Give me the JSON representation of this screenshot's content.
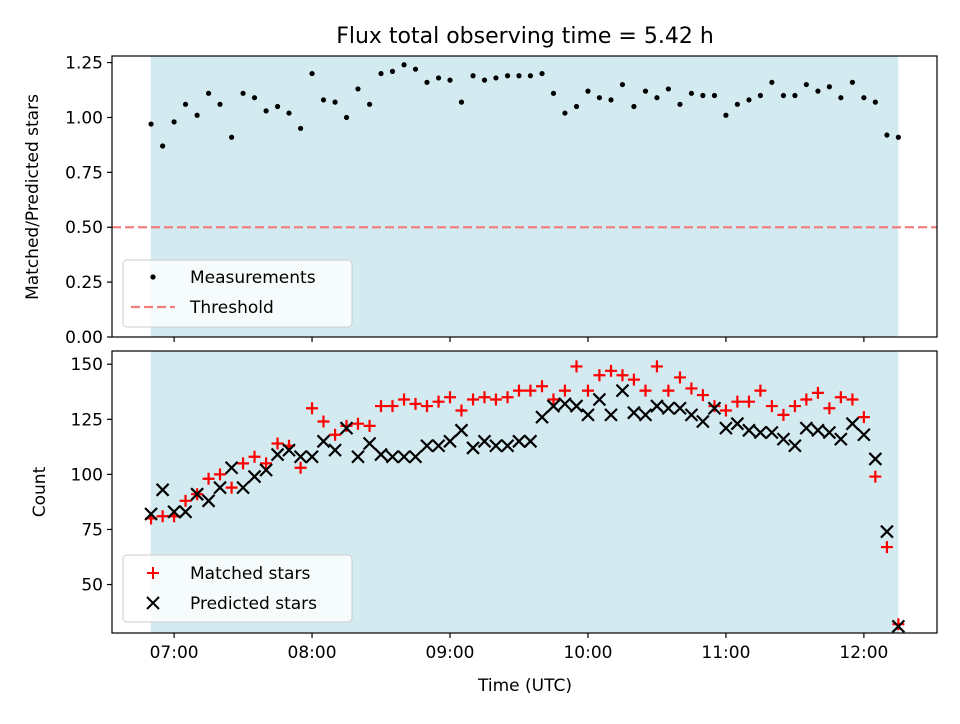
{
  "colors": {
    "observing_band": "#d3eaf0",
    "threshold_line": "#f08080",
    "matched": "#ff0000",
    "predicted": "#000000",
    "measurement": "#000000"
  },
  "x_ticks": [
    {
      "t": 7.0,
      "label": "07:00"
    },
    {
      "t": 8.0,
      "label": "08:00"
    },
    {
      "t": 9.0,
      "label": "09:00"
    },
    {
      "t": 10.0,
      "label": "10:00"
    },
    {
      "t": 11.0,
      "label": "11:00"
    },
    {
      "t": 12.0,
      "label": "12:00"
    }
  ],
  "chart_data": [
    {
      "type": "scatter",
      "title": "Flux total observing time = 5.42 h",
      "xlabel": "",
      "ylabel": "Matched/Predicted stars",
      "xlim": [
        6.55,
        12.53
      ],
      "ylim": [
        0.0,
        1.28
      ],
      "yticks": [
        {
          "v": 0.0,
          "label": "0.00"
        },
        {
          "v": 0.25,
          "label": "0.25"
        },
        {
          "v": 0.5,
          "label": "0.50"
        },
        {
          "v": 0.75,
          "label": "0.75"
        },
        {
          "v": 1.0,
          "label": "1.00"
        },
        {
          "v": 1.25,
          "label": "1.25"
        }
      ],
      "observing_window": [
        6.83,
        12.25
      ],
      "threshold": 0.5,
      "legend": {
        "position": "lower-left",
        "entries": [
          {
            "name": "Measurements",
            "marker": "dot"
          },
          {
            "name": "Threshold",
            "marker": "dashed-line"
          }
        ]
      },
      "series": [
        {
          "name": "Measurements",
          "x": [
            6.833,
            6.917,
            7.0,
            7.083,
            7.167,
            7.25,
            7.333,
            7.417,
            7.5,
            7.583,
            7.667,
            7.75,
            7.833,
            7.917,
            8.0,
            8.083,
            8.167,
            8.25,
            8.333,
            8.417,
            8.5,
            8.583,
            8.667,
            8.75,
            8.833,
            8.917,
            9.0,
            9.083,
            9.167,
            9.25,
            9.333,
            9.417,
            9.5,
            9.583,
            9.667,
            9.75,
            9.833,
            9.917,
            10.0,
            10.083,
            10.167,
            10.25,
            10.333,
            10.417,
            10.5,
            10.583,
            10.667,
            10.75,
            10.833,
            10.917,
            11.0,
            11.083,
            11.167,
            11.25,
            11.333,
            11.417,
            11.5,
            11.583,
            11.667,
            11.75,
            11.833,
            11.917,
            12.0,
            12.083,
            12.167,
            12.25
          ],
          "values": [
            0.97,
            0.87,
            0.98,
            1.06,
            1.01,
            1.11,
            1.06,
            0.91,
            1.11,
            1.09,
            1.03,
            1.05,
            1.02,
            0.95,
            1.2,
            1.08,
            1.07,
            1.0,
            1.13,
            1.06,
            1.2,
            1.21,
            1.24,
            1.22,
            1.16,
            1.18,
            1.17,
            1.07,
            1.19,
            1.17,
            1.18,
            1.19,
            1.19,
            1.19,
            1.2,
            1.11,
            1.02,
            1.05,
            1.12,
            1.09,
            1.08,
            1.15,
            1.05,
            1.12,
            1.09,
            1.13,
            1.06,
            1.11,
            1.1,
            1.1,
            1.01,
            1.06,
            1.08,
            1.1,
            1.16,
            1.1,
            1.1,
            1.15,
            1.12,
            1.14,
            1.09,
            1.16,
            1.09,
            1.07,
            0.92,
            0.91
          ]
        }
      ]
    },
    {
      "type": "scatter",
      "title": "",
      "xlabel": "Time (UTC)",
      "ylabel": "Count",
      "xlim": [
        6.55,
        12.53
      ],
      "ylim": [
        28,
        156
      ],
      "yticks": [
        {
          "v": 50,
          "label": "50"
        },
        {
          "v": 75,
          "label": "75"
        },
        {
          "v": 100,
          "label": "100"
        },
        {
          "v": 125,
          "label": "125"
        },
        {
          "v": 150,
          "label": "150"
        }
      ],
      "observing_window": [
        6.83,
        12.25
      ],
      "legend": {
        "position": "lower-left",
        "entries": [
          {
            "name": "Matched stars",
            "marker": "plus"
          },
          {
            "name": "Predicted stars",
            "marker": "x"
          }
        ]
      },
      "series": [
        {
          "name": "Matched stars",
          "x": [
            6.833,
            6.917,
            7.0,
            7.083,
            7.167,
            7.25,
            7.333,
            7.417,
            7.5,
            7.583,
            7.667,
            7.75,
            7.833,
            7.917,
            8.0,
            8.083,
            8.167,
            8.25,
            8.333,
            8.417,
            8.5,
            8.583,
            8.667,
            8.75,
            8.833,
            8.917,
            9.0,
            9.083,
            9.167,
            9.25,
            9.333,
            9.417,
            9.5,
            9.583,
            9.667,
            9.75,
            9.833,
            9.917,
            10.0,
            10.083,
            10.167,
            10.25,
            10.333,
            10.417,
            10.5,
            10.583,
            10.667,
            10.75,
            10.833,
            10.917,
            11.0,
            11.083,
            11.167,
            11.25,
            11.333,
            11.417,
            11.5,
            11.583,
            11.667,
            11.75,
            11.833,
            11.917,
            12.0,
            12.083,
            12.167,
            12.25
          ],
          "values": [
            80,
            81,
            81,
            88,
            91,
            98,
            100,
            94,
            105,
            108,
            105,
            114,
            113,
            103,
            130,
            124,
            118,
            122,
            123,
            122,
            131,
            131,
            134,
            132,
            131,
            133,
            135,
            129,
            134,
            135,
            134,
            135,
            138,
            138,
            140,
            134,
            138,
            149,
            138,
            145,
            147,
            145,
            143,
            138,
            149,
            138,
            144,
            139,
            136,
            131,
            129,
            133,
            133,
            138,
            131,
            127,
            131,
            134,
            137,
            130,
            135,
            134,
            126,
            99,
            67,
            32
          ]
        },
        {
          "name": "Predicted stars",
          "x": [
            6.833,
            6.917,
            7.0,
            7.083,
            7.167,
            7.25,
            7.333,
            7.417,
            7.5,
            7.583,
            7.667,
            7.75,
            7.833,
            7.917,
            8.0,
            8.083,
            8.167,
            8.25,
            8.333,
            8.417,
            8.5,
            8.583,
            8.667,
            8.75,
            8.833,
            8.917,
            9.0,
            9.083,
            9.167,
            9.25,
            9.333,
            9.417,
            9.5,
            9.583,
            9.667,
            9.75,
            9.833,
            9.917,
            10.0,
            10.083,
            10.167,
            10.25,
            10.333,
            10.417,
            10.5,
            10.583,
            10.667,
            10.75,
            10.833,
            10.917,
            11.0,
            11.083,
            11.167,
            11.25,
            11.333,
            11.417,
            11.5,
            11.583,
            11.667,
            11.75,
            11.833,
            11.917,
            12.0,
            12.083,
            12.167,
            12.25
          ],
          "values": [
            82,
            93,
            83,
            83,
            91,
            88,
            94,
            103,
            94,
            99,
            102,
            109,
            111,
            108,
            108,
            115,
            111,
            121,
            108,
            114,
            109,
            108,
            108,
            108,
            113,
            113,
            115,
            120,
            112,
            115,
            113,
            113,
            115,
            115,
            126,
            131,
            132,
            131,
            127,
            134,
            127,
            138,
            128,
            127,
            131,
            130,
            130,
            127,
            124,
            130,
            121,
            123,
            120,
            119,
            119,
            116,
            113,
            121,
            120,
            119,
            116,
            123,
            118,
            107,
            74,
            31
          ]
        }
      ]
    }
  ]
}
